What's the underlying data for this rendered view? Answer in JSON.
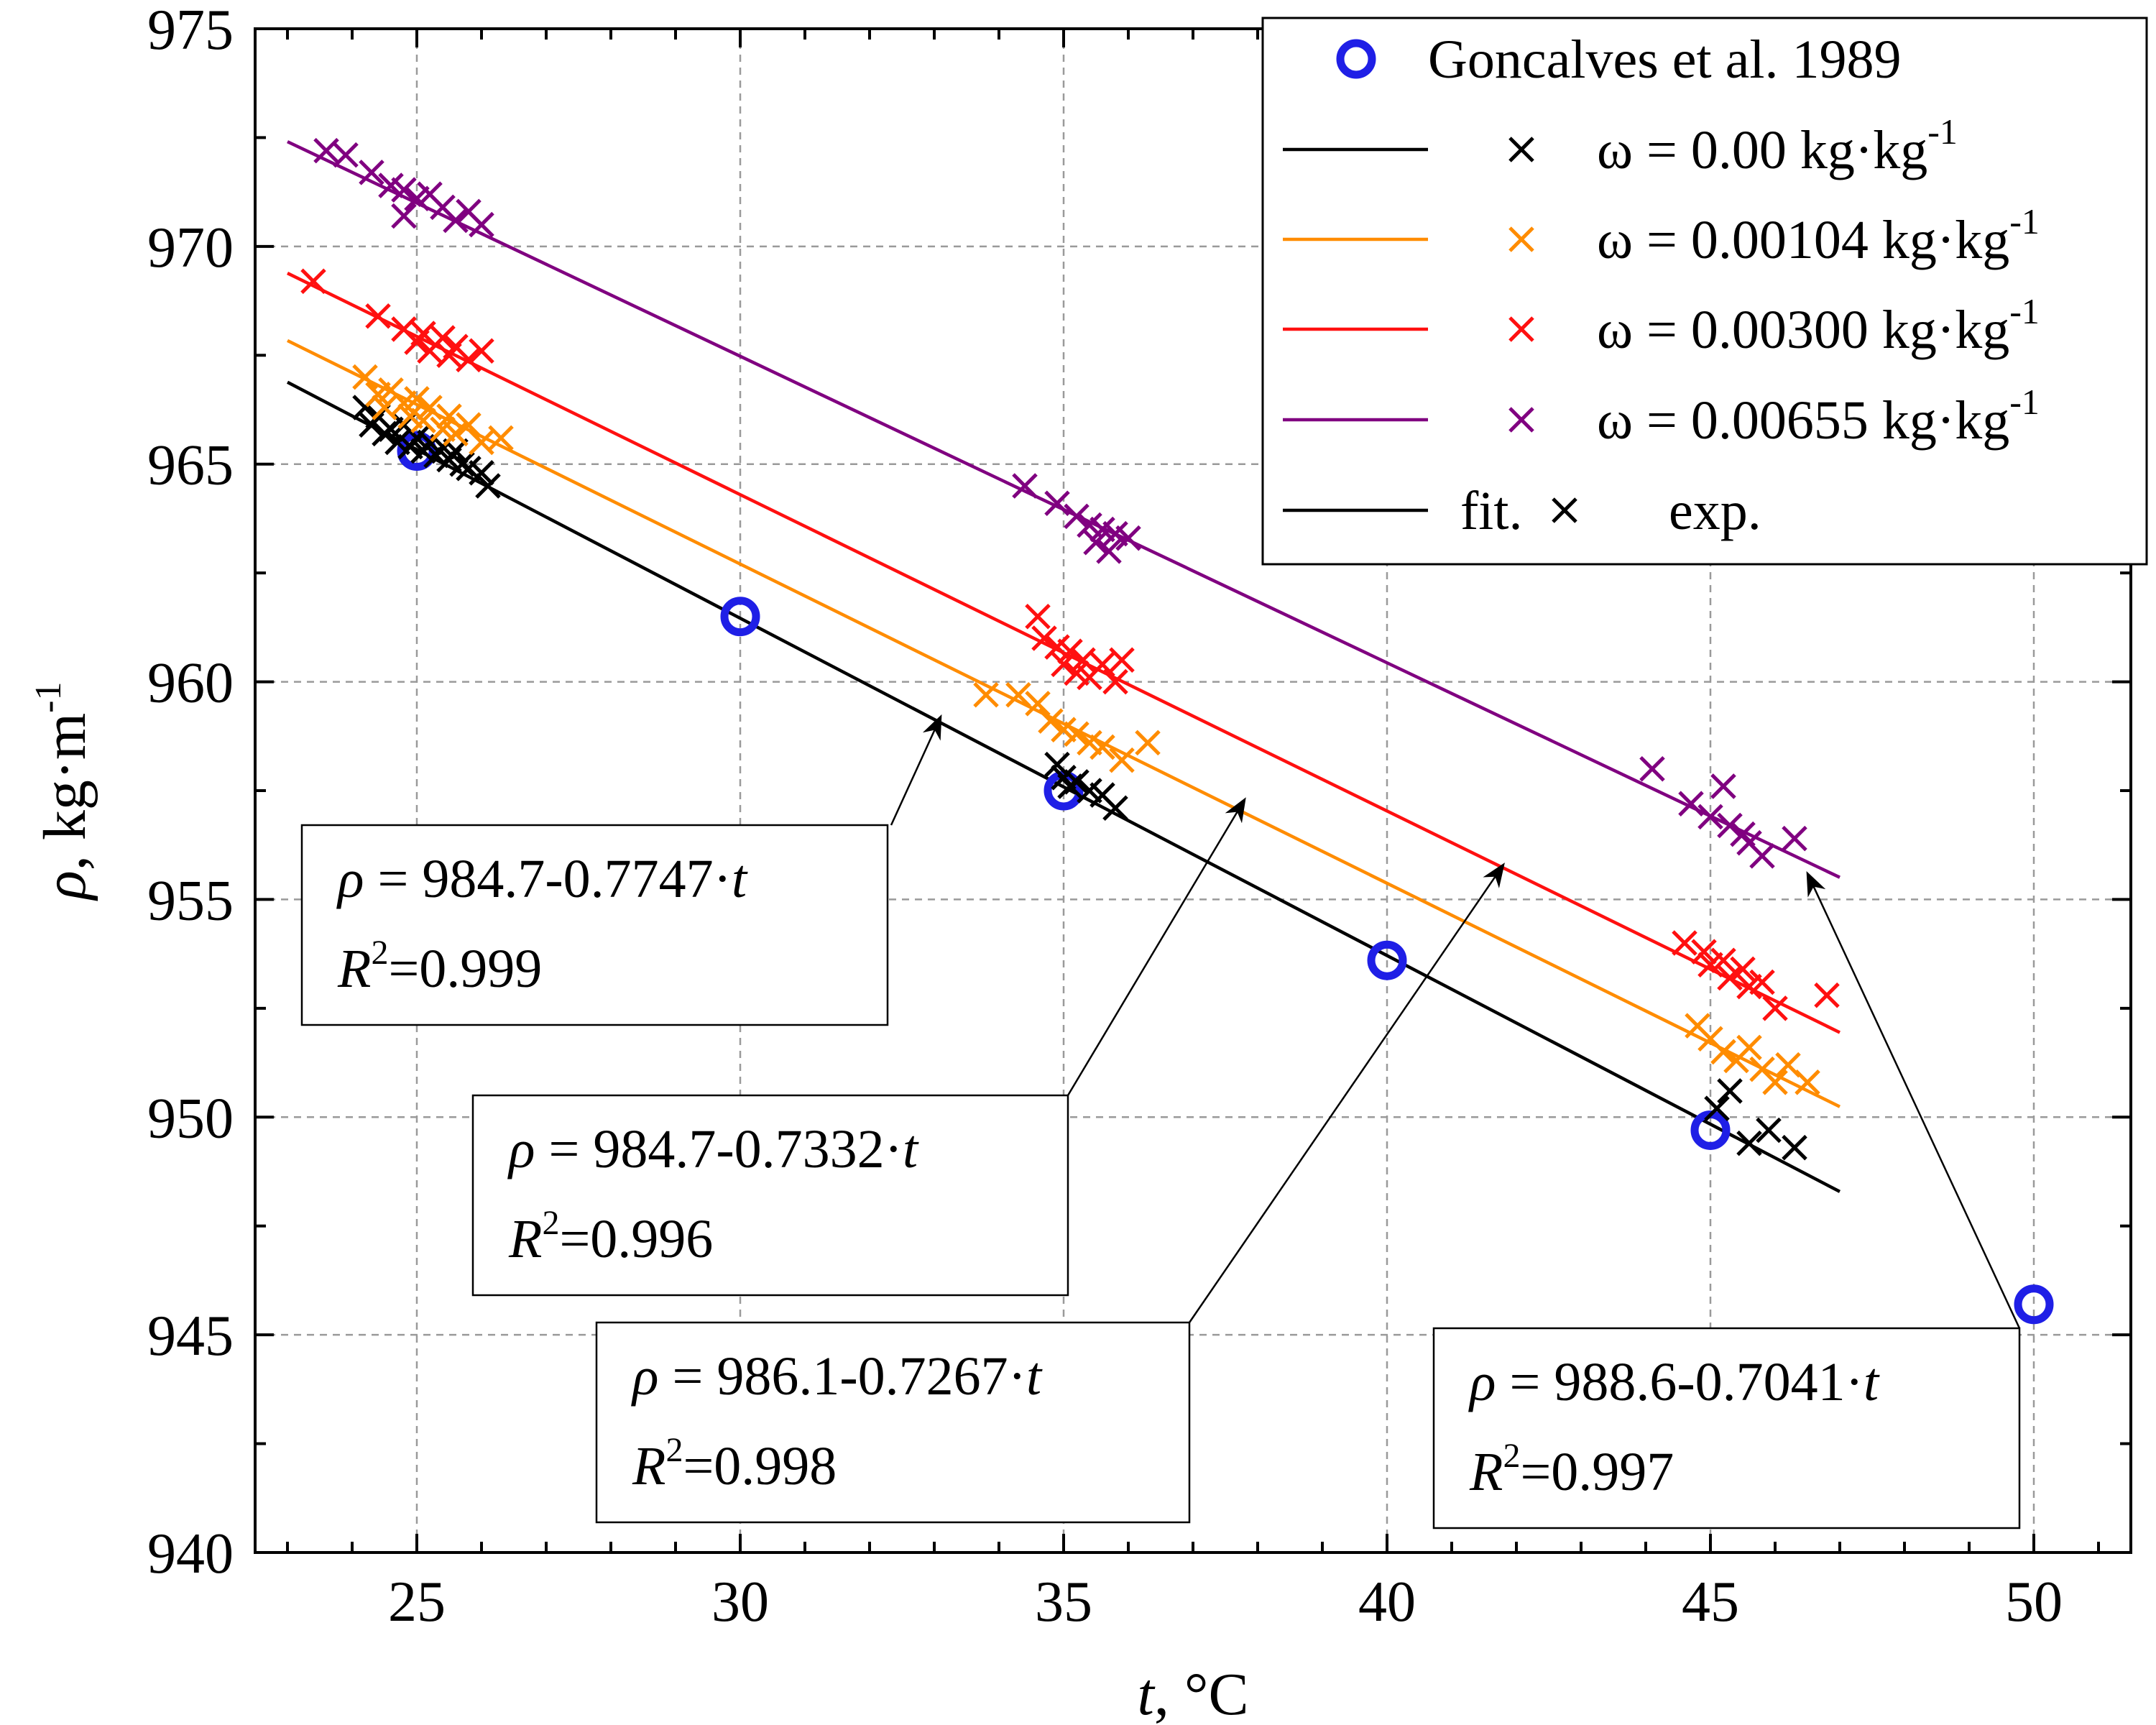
{
  "chart_data": {
    "type": "scatter",
    "xlabel": "t, °C",
    "ylabel": "ρ, kg·m",
    "ylabel_sup": "-1",
    "xlim": [
      22.5,
      51.5
    ],
    "ylim": [
      940,
      975
    ],
    "xticks": [
      25,
      30,
      35,
      40,
      45,
      50
    ],
    "yticks": [
      940,
      945,
      950,
      955,
      960,
      965,
      970,
      975
    ],
    "grid": true,
    "legend_position": "top-right",
    "reference": {
      "name": "Goncalves et al. 1989",
      "color": "#1f1fe6",
      "points": [
        {
          "x": 25,
          "y": 965.3
        },
        {
          "x": 30,
          "y": 961.5
        },
        {
          "x": 35,
          "y": 957.5
        },
        {
          "x": 40,
          "y": 953.6
        },
        {
          "x": 45,
          "y": 949.7
        },
        {
          "x": 50,
          "y": 945.7
        }
      ]
    },
    "series": [
      {
        "name": "ω = 0.00 kg·kg",
        "name_sup": "-1",
        "color": "#000000",
        "fit": {
          "intercept": 984.7,
          "slope": -0.7747,
          "x_range": [
            23,
            47
          ]
        },
        "points": [
          {
            "x": 24.2,
            "y": 966.3
          },
          {
            "x": 24.3,
            "y": 965.9
          },
          {
            "x": 24.4,
            "y": 966.1
          },
          {
            "x": 24.5,
            "y": 965.7
          },
          {
            "x": 24.6,
            "y": 965.8
          },
          {
            "x": 24.7,
            "y": 965.5
          },
          {
            "x": 24.8,
            "y": 965.9
          },
          {
            "x": 24.9,
            "y": 965.4
          },
          {
            "x": 25.0,
            "y": 965.6
          },
          {
            "x": 25.1,
            "y": 965.3
          },
          {
            "x": 25.2,
            "y": 965.5
          },
          {
            "x": 25.3,
            "y": 965.2
          },
          {
            "x": 25.4,
            "y": 965.4
          },
          {
            "x": 25.5,
            "y": 965.1
          },
          {
            "x": 25.6,
            "y": 965.3
          },
          {
            "x": 25.7,
            "y": 965.0
          },
          {
            "x": 25.8,
            "y": 964.9
          },
          {
            "x": 26.0,
            "y": 964.8
          },
          {
            "x": 26.1,
            "y": 964.5
          },
          {
            "x": 34.9,
            "y": 958.1
          },
          {
            "x": 35.0,
            "y": 957.8
          },
          {
            "x": 35.1,
            "y": 957.6
          },
          {
            "x": 35.2,
            "y": 957.7
          },
          {
            "x": 35.4,
            "y": 957.5
          },
          {
            "x": 35.6,
            "y": 957.4
          },
          {
            "x": 35.8,
            "y": 957.1
          },
          {
            "x": 45.1,
            "y": 950.2
          },
          {
            "x": 45.3,
            "y": 950.6
          },
          {
            "x": 45.6,
            "y": 949.4
          },
          {
            "x": 45.9,
            "y": 949.7
          },
          {
            "x": 46.3,
            "y": 949.3
          }
        ]
      },
      {
        "name": "ω = 0.00104 kg·kg",
        "name_sup": "-1",
        "color": "#ff8c00",
        "fit": {
          "intercept": 984.7,
          "slope": -0.7332,
          "x_range": [
            23,
            47
          ]
        },
        "points": [
          {
            "x": 24.2,
            "y": 967.0
          },
          {
            "x": 24.4,
            "y": 966.6
          },
          {
            "x": 24.5,
            "y": 966.3
          },
          {
            "x": 24.6,
            "y": 966.7
          },
          {
            "x": 24.8,
            "y": 966.4
          },
          {
            "x": 24.9,
            "y": 966.1
          },
          {
            "x": 25.0,
            "y": 966.5
          },
          {
            "x": 25.1,
            "y": 966.0
          },
          {
            "x": 25.2,
            "y": 966.3
          },
          {
            "x": 25.4,
            "y": 965.8
          },
          {
            "x": 25.5,
            "y": 966.1
          },
          {
            "x": 25.6,
            "y": 965.7
          },
          {
            "x": 25.8,
            "y": 965.9
          },
          {
            "x": 26.0,
            "y": 965.5
          },
          {
            "x": 26.3,
            "y": 965.6
          },
          {
            "x": 33.8,
            "y": 959.7
          },
          {
            "x": 34.3,
            "y": 959.7
          },
          {
            "x": 34.6,
            "y": 959.5
          },
          {
            "x": 34.8,
            "y": 959.1
          },
          {
            "x": 35.0,
            "y": 958.9
          },
          {
            "x": 35.2,
            "y": 958.8
          },
          {
            "x": 35.4,
            "y": 958.6
          },
          {
            "x": 35.6,
            "y": 958.5
          },
          {
            "x": 35.9,
            "y": 958.2
          },
          {
            "x": 36.3,
            "y": 958.6
          },
          {
            "x": 44.8,
            "y": 952.1
          },
          {
            "x": 45.0,
            "y": 951.8
          },
          {
            "x": 45.2,
            "y": 951.5
          },
          {
            "x": 45.4,
            "y": 951.3
          },
          {
            "x": 45.6,
            "y": 951.6
          },
          {
            "x": 45.8,
            "y": 951.1
          },
          {
            "x": 46.0,
            "y": 950.8
          },
          {
            "x": 46.2,
            "y": 951.2
          },
          {
            "x": 46.5,
            "y": 950.8
          }
        ]
      },
      {
        "name": "ω = 0.00300 kg·kg",
        "name_sup": "-1",
        "color": "#ff1010",
        "fit": {
          "intercept": 986.1,
          "slope": -0.7267,
          "x_range": [
            23,
            47
          ]
        },
        "points": [
          {
            "x": 23.4,
            "y": 969.2
          },
          {
            "x": 24.4,
            "y": 968.4
          },
          {
            "x": 24.8,
            "y": 968.1
          },
          {
            "x": 25.0,
            "y": 967.8
          },
          {
            "x": 25.1,
            "y": 968.0
          },
          {
            "x": 25.2,
            "y": 967.6
          },
          {
            "x": 25.4,
            "y": 967.9
          },
          {
            "x": 25.5,
            "y": 967.5
          },
          {
            "x": 25.6,
            "y": 967.7
          },
          {
            "x": 25.8,
            "y": 967.4
          },
          {
            "x": 26.0,
            "y": 967.6
          },
          {
            "x": 34.6,
            "y": 961.5
          },
          {
            "x": 34.7,
            "y": 961.0
          },
          {
            "x": 34.9,
            "y": 960.8
          },
          {
            "x": 35.0,
            "y": 960.4
          },
          {
            "x": 35.1,
            "y": 960.7
          },
          {
            "x": 35.2,
            "y": 960.2
          },
          {
            "x": 35.3,
            "y": 960.5
          },
          {
            "x": 35.4,
            "y": 960.1
          },
          {
            "x": 35.6,
            "y": 960.4
          },
          {
            "x": 35.8,
            "y": 960.0
          },
          {
            "x": 35.9,
            "y": 960.5
          },
          {
            "x": 44.6,
            "y": 954.0
          },
          {
            "x": 44.9,
            "y": 953.8
          },
          {
            "x": 45.0,
            "y": 953.5
          },
          {
            "x": 45.2,
            "y": 953.6
          },
          {
            "x": 45.3,
            "y": 953.2
          },
          {
            "x": 45.5,
            "y": 953.4
          },
          {
            "x": 45.6,
            "y": 953.0
          },
          {
            "x": 45.8,
            "y": 953.1
          },
          {
            "x": 46.0,
            "y": 952.5
          },
          {
            "x": 46.8,
            "y": 952.8
          }
        ]
      },
      {
        "name": "ω = 0.00655 kg·kg",
        "name_sup": "-1",
        "color": "#800080",
        "fit": {
          "intercept": 988.6,
          "slope": -0.7041,
          "x_range": [
            23,
            47
          ]
        },
        "points": [
          {
            "x": 23.6,
            "y": 972.2
          },
          {
            "x": 23.9,
            "y": 972.1
          },
          {
            "x": 24.3,
            "y": 971.7
          },
          {
            "x": 24.6,
            "y": 971.4
          },
          {
            "x": 24.8,
            "y": 971.3
          },
          {
            "x": 24.8,
            "y": 970.7
          },
          {
            "x": 25.0,
            "y": 971.1
          },
          {
            "x": 25.2,
            "y": 971.2
          },
          {
            "x": 25.4,
            "y": 970.9
          },
          {
            "x": 25.6,
            "y": 970.6
          },
          {
            "x": 25.8,
            "y": 970.8
          },
          {
            "x": 26.0,
            "y": 970.5
          },
          {
            "x": 34.4,
            "y": 964.5
          },
          {
            "x": 34.9,
            "y": 964.1
          },
          {
            "x": 35.2,
            "y": 963.8
          },
          {
            "x": 35.4,
            "y": 963.6
          },
          {
            "x": 35.5,
            "y": 963.2
          },
          {
            "x": 35.6,
            "y": 963.5
          },
          {
            "x": 35.7,
            "y": 963.0
          },
          {
            "x": 35.8,
            "y": 963.4
          },
          {
            "x": 36.0,
            "y": 963.3
          },
          {
            "x": 44.1,
            "y": 958.0
          },
          {
            "x": 44.7,
            "y": 957.2
          },
          {
            "x": 45.0,
            "y": 956.9
          },
          {
            "x": 45.2,
            "y": 957.6
          },
          {
            "x": 45.3,
            "y": 956.7
          },
          {
            "x": 45.5,
            "y": 956.5
          },
          {
            "x": 45.6,
            "y": 956.3
          },
          {
            "x": 45.8,
            "y": 956.0
          },
          {
            "x": 46.3,
            "y": 956.4
          }
        ]
      }
    ],
    "legend": {
      "entries": [
        {
          "label": "Goncalves et al. 1989",
          "kind": "circle",
          "color": "#1f1fe6"
        },
        {
          "label": "ω = 0.00 kg·kg",
          "sup": "-1",
          "kind": "line-cross",
          "color": "#000000"
        },
        {
          "label": "ω = 0.00104 kg·kg",
          "sup": "-1",
          "kind": "line-cross",
          "color": "#ff8c00"
        },
        {
          "label": "ω = 0.00300 kg·kg",
          "sup": "-1",
          "kind": "line-cross",
          "color": "#ff1010"
        },
        {
          "label": "ω = 0.00655 kg·kg",
          "sup": "-1",
          "kind": "line-cross",
          "color": "#800080"
        }
      ],
      "fit_label": "fit.",
      "exp_label": "exp."
    },
    "annotations": [
      {
        "series": 0,
        "equation": "ρ = 984.7-0.7747·t",
        "r2": "=0.999",
        "r2_prefix": "R",
        "r2_sup": "2",
        "arrow_target": {
          "x": 33.1,
          "y": 959.2
        }
      },
      {
        "series": 1,
        "equation": "ρ = 984.7-0.7332·t",
        "r2": "=0.996",
        "r2_prefix": "R",
        "r2_sup": "2",
        "arrow_target": {
          "x": 37.8,
          "y": 957.3
        }
      },
      {
        "series": 2,
        "equation": "ρ = 986.1-0.7267·t",
        "r2": "=0.998",
        "r2_prefix": "R",
        "r2_sup": "2",
        "arrow_target": {
          "x": 41.8,
          "y": 955.8
        }
      },
      {
        "series": 3,
        "equation": "ρ = 988.6-0.7041·t",
        "r2": "=0.997",
        "r2_prefix": "R",
        "r2_sup": "2",
        "arrow_target": {
          "x": 46.5,
          "y": 955.6
        }
      }
    ]
  }
}
